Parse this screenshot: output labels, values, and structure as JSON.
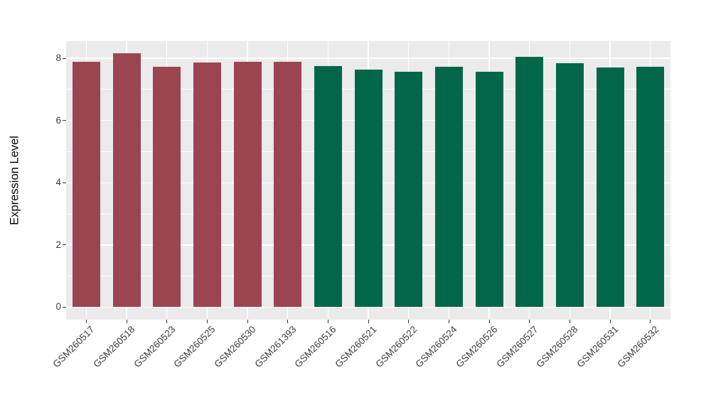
{
  "figure": {
    "background": "#FFFFFF",
    "panel_background": "#EBEBEB",
    "grid_color": "#FFFFFF",
    "tick_color": "#333333",
    "axis_text_color": "#3D3D3D",
    "axis_title_color": "#000000"
  },
  "chart_data": {
    "type": "bar",
    "title": "",
    "xlabel": "",
    "ylabel": "Expression Level",
    "categories": [
      "GSM260517",
      "GSM260518",
      "GSM260523",
      "GSM260525",
      "GSM260530",
      "GSM261393",
      "GSM260516",
      "GSM260521",
      "GSM260522",
      "GSM260524",
      "GSM260526",
      "GSM260527",
      "GSM260528",
      "GSM260531",
      "GSM260532"
    ],
    "values": [
      7.89,
      8.16,
      7.73,
      7.86,
      7.89,
      7.88,
      7.76,
      7.64,
      7.58,
      7.73,
      7.56,
      8.04,
      7.85,
      7.71,
      7.72
    ],
    "bar_colors": [
      "#9B4551",
      "#9B4551",
      "#9B4551",
      "#9B4551",
      "#9B4551",
      "#9B4551",
      "#026749",
      "#026749",
      "#026749",
      "#026749",
      "#026749",
      "#026749",
      "#026749",
      "#026749",
      "#026749"
    ],
    "groups": [
      {
        "name": "group-red",
        "color": "#9B4551",
        "count": 6
      },
      {
        "name": "group-green",
        "color": "#026749",
        "count": 9
      }
    ],
    "y_ticks": [
      0,
      2,
      4,
      6,
      8
    ],
    "y_tick_labels": [
      "0",
      "2",
      "4",
      "6",
      "8"
    ],
    "y_minor_ticks": [
      1,
      3,
      5,
      7
    ],
    "ylim": [
      -0.4,
      8.55
    ],
    "grid": "on",
    "legend": "none",
    "x_tick_rotation_deg": 45
  }
}
